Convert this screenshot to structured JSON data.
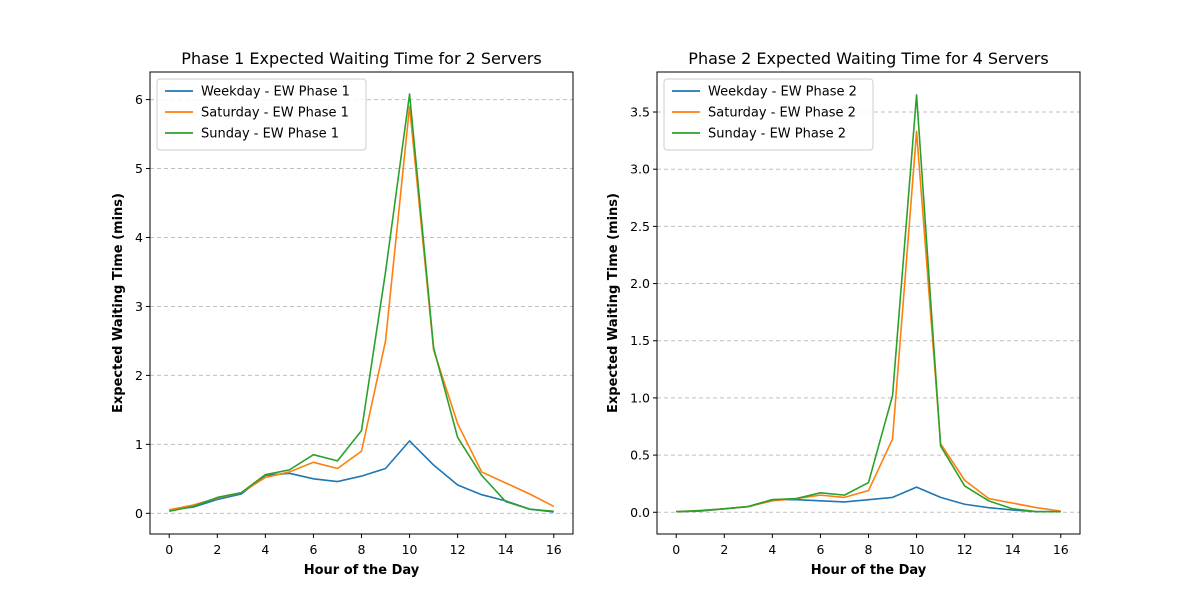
{
  "chart_data": [
    {
      "type": "line",
      "title": "Phase 1 Expected Waiting Time for 2 Servers",
      "xlabel": "Hour of the Day",
      "ylabel": "Expected Waiting Time (mins)",
      "xlim": [
        -0.8,
        16.8
      ],
      "ylim": [
        -0.3,
        6.4
      ],
      "xticks": [
        0,
        2,
        4,
        6,
        8,
        10,
        12,
        14,
        16
      ],
      "yticks": [
        0,
        1,
        2,
        3,
        4,
        5,
        6
      ],
      "grid": "horizontal dashed",
      "legend_position": "top-left",
      "x": [
        0,
        1,
        2,
        3,
        4,
        5,
        6,
        7,
        8,
        9,
        10,
        11,
        12,
        13,
        14,
        15,
        16
      ],
      "series": [
        {
          "name": "Weekday - EW Phase 1",
          "color": "#1f77b4",
          "values": [
            0.05,
            0.09,
            0.2,
            0.28,
            0.55,
            0.58,
            0.5,
            0.46,
            0.54,
            0.65,
            1.05,
            0.7,
            0.41,
            0.27,
            0.18,
            0.06,
            0.02
          ]
        },
        {
          "name": "Saturday - EW Phase 1",
          "color": "#ff7f0e",
          "values": [
            0.05,
            0.12,
            0.22,
            0.3,
            0.52,
            0.6,
            0.74,
            0.65,
            0.9,
            2.5,
            5.9,
            2.37,
            1.3,
            0.6,
            0.44,
            0.28,
            0.1
          ]
        },
        {
          "name": "Sunday - EW Phase 1",
          "color": "#2ca02c",
          "values": [
            0.03,
            0.1,
            0.23,
            0.3,
            0.56,
            0.63,
            0.85,
            0.76,
            1.2,
            3.5,
            6.08,
            2.4,
            1.1,
            0.55,
            0.17,
            0.06,
            0.03
          ]
        }
      ]
    },
    {
      "type": "line",
      "title": "Phase 2 Expected Waiting Time for 4 Servers",
      "xlabel": "Hour of the Day",
      "ylabel": "Expected Waiting Time (mins)",
      "xlim": [
        -0.8,
        16.8
      ],
      "ylim": [
        -0.19,
        3.85
      ],
      "xticks": [
        0,
        2,
        4,
        6,
        8,
        10,
        12,
        14,
        16
      ],
      "yticks": [
        0.0,
        0.5,
        1.0,
        1.5,
        2.0,
        2.5,
        3.0,
        3.5
      ],
      "yticklabels": [
        "0.0",
        "0.5",
        "1.0",
        "1.5",
        "2.0",
        "2.5",
        "3.0",
        "3.5"
      ],
      "grid": "horizontal dashed",
      "legend_position": "top-left",
      "x": [
        0,
        1,
        2,
        3,
        4,
        5,
        6,
        7,
        8,
        9,
        10,
        11,
        12,
        13,
        14,
        15,
        16
      ],
      "series": [
        {
          "name": "Weekday - EW Phase 2",
          "color": "#1f77b4",
          "values": [
            0.005,
            0.01,
            0.03,
            0.05,
            0.11,
            0.11,
            0.1,
            0.09,
            0.11,
            0.13,
            0.22,
            0.13,
            0.07,
            0.04,
            0.02,
            0.005,
            0.005
          ]
        },
        {
          "name": "Saturday - EW Phase 2",
          "color": "#ff7f0e",
          "values": [
            0.005,
            0.015,
            0.03,
            0.05,
            0.1,
            0.12,
            0.15,
            0.13,
            0.19,
            0.64,
            3.33,
            0.6,
            0.28,
            0.12,
            0.08,
            0.04,
            0.01
          ]
        },
        {
          "name": "Sunday - EW Phase 2",
          "color": "#2ca02c",
          "values": [
            0.005,
            0.015,
            0.03,
            0.05,
            0.11,
            0.12,
            0.17,
            0.15,
            0.26,
            1.02,
            3.65,
            0.58,
            0.23,
            0.1,
            0.03,
            0.005,
            0.005
          ]
        }
      ]
    }
  ]
}
